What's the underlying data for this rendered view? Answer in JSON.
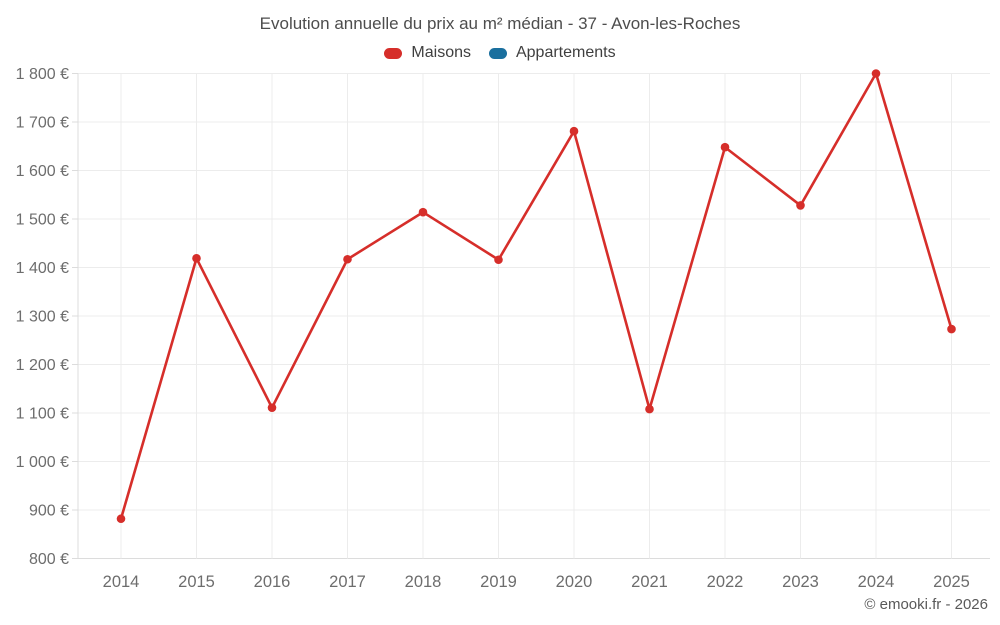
{
  "header": {
    "title": "Evolution annuelle du prix au m² médian - 37 - Avon-les-Roches"
  },
  "legend": {
    "items": [
      {
        "label": "Maisons",
        "color": "#d62e2a"
      },
      {
        "label": "Appartements",
        "color": "#1a6f9e"
      }
    ]
  },
  "footer": {
    "credit": "© emooki.fr - 2026"
  },
  "chart_data": {
    "type": "line",
    "title": "Evolution annuelle du prix au m² médian - 37 - Avon-les-Roches",
    "categories": [
      "2014",
      "2015",
      "2016",
      "2017",
      "2018",
      "2019",
      "2020",
      "2021",
      "2022",
      "2023",
      "2024",
      "2025"
    ],
    "series": [
      {
        "name": "Maisons",
        "color": "#d62e2a",
        "values": [
          882,
          1419,
          1111,
          1417,
          1514,
          1416,
          1681,
          1108,
          1648,
          1528,
          1800,
          1273
        ]
      },
      {
        "name": "Appartements",
        "color": "#1a6f9e",
        "values": []
      }
    ],
    "xlabel": "",
    "ylabel": "",
    "ylim": [
      800,
      1800
    ],
    "y_tick_step": 100,
    "y_tick_labels": [
      "800 €",
      "900 €",
      "1 000 €",
      "1 100 €",
      "1 200 €",
      "1 300 €",
      "1 400 €",
      "1 500 €",
      "1 600 €",
      "1 700 €",
      "1 800 €"
    ],
    "currency_suffix": "€",
    "grid": true,
    "legend_position": "top"
  }
}
